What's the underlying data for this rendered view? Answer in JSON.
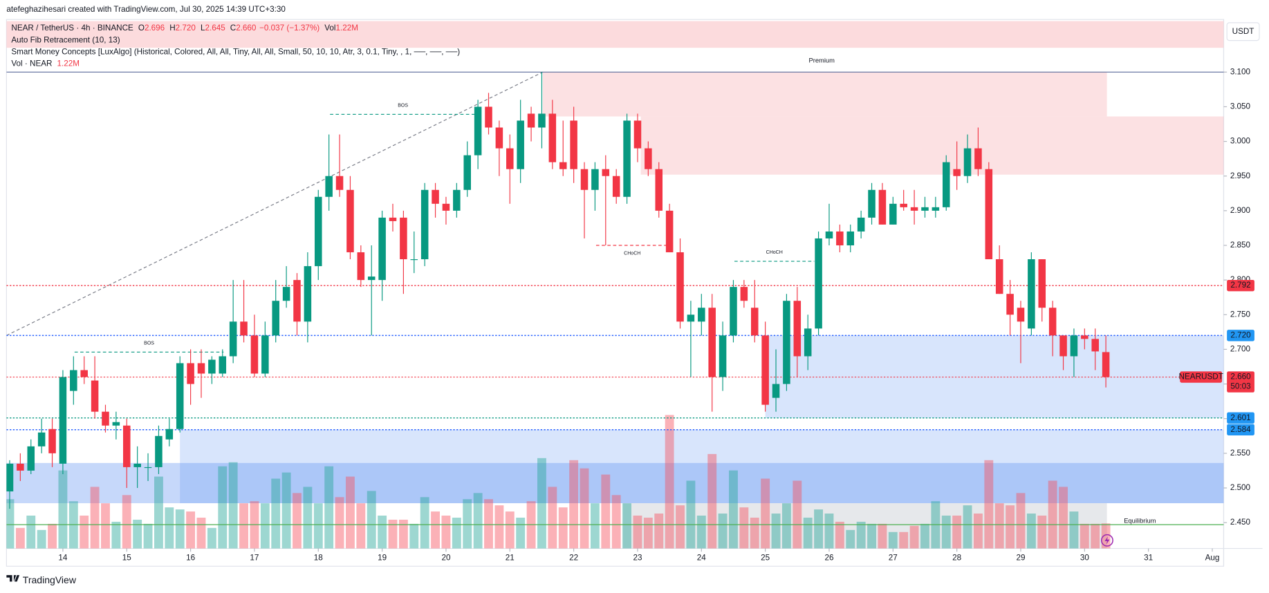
{
  "header": {
    "author_line": "atefeghazihesari created with TradingView.com, Jul 30, 2025 14:39 UTC+3:30",
    "symbol": "NEAR / TetherUS · 4h · BINANCE",
    "ohlc": [
      {
        "key": "O",
        "value": "2.696"
      },
      {
        "key": "H",
        "value": "2.720"
      },
      {
        "key": "L",
        "value": "2.645"
      },
      {
        "key": "C",
        "value": "2.660"
      }
    ],
    "change": "−0.037 (−1.37%)",
    "vol_key": "Vol",
    "vol": "1.22M",
    "indicators": [
      "Auto Fib Retracement (10, 13)",
      "Smart Money Concepts [LuxAlgo] (Historical, Colored, All, All, Tiny, All, All, Small, 50, 10, 10, Atr, 3, 0.1, Tiny, , 1, ──, ──, ──)"
    ],
    "vol_line": "Vol · NEAR",
    "vol_line_value": "1.22M",
    "currency": "USDT",
    "brand": "TradingView"
  },
  "chart_data": {
    "type": "candlestick",
    "up_color": "#089981",
    "down_color": "#f23645",
    "volume_up_color": "#26a69a",
    "volume_down_color": "#f7525f",
    "open": [
      2.495,
      2.535,
      2.525,
      2.56,
      2.585,
      2.535,
      2.64,
      2.67,
      2.655,
      2.61,
      2.59,
      2.59,
      2.53,
      2.53,
      2.53,
      2.57,
      2.585,
      2.68,
      2.68,
      2.665,
      2.665,
      2.69,
      2.74,
      2.72,
      2.665,
      2.72,
      2.77,
      2.8,
      2.74,
      2.82,
      2.92,
      2.95,
      2.93,
      2.84,
      2.8,
      2.8,
      2.89,
      2.89,
      2.83,
      2.83,
      2.93,
      2.91,
      2.9,
      2.93,
      2.98,
      3.05,
      3.02,
      2.99,
      2.96,
      3.04,
      3.02,
      3.04,
      2.97,
      3.03,
      2.96,
      2.93,
      2.96,
      2.95,
      2.92,
      3.03,
      2.99,
      2.96,
      2.9,
      2.84,
      2.74,
      2.74,
      2.76,
      2.66,
      2.72,
      2.79,
      2.76,
      2.72,
      2.63,
      2.65,
      2.77,
      2.69,
      2.73,
      2.86,
      2.87,
      2.85,
      2.87,
      2.89,
      2.93,
      2.88,
      2.91,
      2.905,
      2.9,
      2.9,
      2.905,
      2.96,
      2.95,
      2.99,
      2.96,
      2.83,
      2.78,
      2.76,
      2.73,
      2.83,
      2.76,
      2.72,
      2.69,
      2.72,
      2.715,
      2.696
    ],
    "high": [
      2.54,
      2.55,
      2.57,
      2.6,
      2.6,
      2.67,
      2.69,
      2.69,
      2.69,
      2.62,
      2.61,
      2.6,
      2.56,
      2.55,
      2.59,
      2.6,
      2.69,
      2.7,
      2.7,
      2.69,
      2.7,
      2.8,
      2.8,
      2.75,
      2.74,
      2.8,
      2.82,
      2.81,
      2.84,
      2.93,
      3.01,
      3.01,
      2.95,
      2.85,
      2.85,
      2.9,
      2.91,
      2.9,
      2.87,
      2.94,
      2.94,
      2.92,
      2.94,
      3,
      3.06,
      3.07,
      3.03,
      3.01,
      3.06,
      3.05,
      3.1,
      3.06,
      3.03,
      3.05,
      2.97,
      2.97,
      2.98,
      2.96,
      3.04,
      3.04,
      3,
      2.97,
      2.91,
      2.86,
      2.77,
      2.78,
      2.78,
      2.74,
      2.8,
      2.8,
      2.8,
      2.74,
      2.7,
      2.78,
      2.79,
      2.75,
      2.87,
      2.91,
      2.88,
      2.88,
      2.9,
      2.94,
      2.94,
      2.92,
      2.93,
      2.93,
      2.92,
      2.92,
      2.98,
      3,
      3.01,
      3.02,
      2.97,
      2.85,
      2.8,
      2.77,
      2.84,
      2.83,
      2.77,
      2.72,
      2.73,
      2.73,
      2.73,
      2.72
    ],
    "low": [
      2.47,
      2.51,
      2.52,
      2.55,
      2.53,
      2.52,
      2.62,
      2.65,
      2.6,
      2.58,
      2.57,
      2.5,
      2.5,
      2.51,
      2.52,
      2.56,
      2.58,
      2.62,
      2.63,
      2.65,
      2.66,
      2.68,
      2.71,
      2.66,
      2.66,
      2.71,
      2.76,
      2.72,
      2.71,
      2.8,
      2.9,
      2.92,
      2.83,
      2.79,
      2.72,
      2.77,
      2.87,
      2.78,
      2.81,
      2.82,
      2.89,
      2.88,
      2.89,
      2.92,
      2.96,
      3.01,
      2.95,
      2.91,
      2.94,
      3,
      2.99,
      2.96,
      2.95,
      2.94,
      2.86,
      2.9,
      2.85,
      2.91,
      2.91,
      2.97,
      2.95,
      2.89,
      2.84,
      2.73,
      2.66,
      2.72,
      2.61,
      2.64,
      2.71,
      2.76,
      2.71,
      2.61,
      2.61,
      2.64,
      2.66,
      2.67,
      2.72,
      2.85,
      2.84,
      2.84,
      2.86,
      2.88,
      2.88,
      2.88,
      2.9,
      2.88,
      2.89,
      2.89,
      2.9,
      2.93,
      2.94,
      2.95,
      2.83,
      2.78,
      2.72,
      2.68,
      2.72,
      2.74,
      2.69,
      2.67,
      2.66,
      2.7,
      2.67,
      2.645
    ],
    "close": [
      2.535,
      2.525,
      2.56,
      2.58,
      2.55,
      2.66,
      2.67,
      2.66,
      2.61,
      2.59,
      2.595,
      2.53,
      2.535,
      2.53,
      2.575,
      2.585,
      2.68,
      2.65,
      2.665,
      2.685,
      2.69,
      2.74,
      2.72,
      2.665,
      2.72,
      2.77,
      2.79,
      2.74,
      2.82,
      2.92,
      2.95,
      2.93,
      2.84,
      2.8,
      2.805,
      2.89,
      2.885,
      2.83,
      2.83,
      2.93,
      2.91,
      2.9,
      2.93,
      2.98,
      3.05,
      3.02,
      2.99,
      2.96,
      3.03,
      3.02,
      3.04,
      2.97,
      2.96,
      2.96,
      2.93,
      2.96,
      2.95,
      2.92,
      3.03,
      2.99,
      2.96,
      2.9,
      2.84,
      2.74,
      2.75,
      2.76,
      2.66,
      2.72,
      2.79,
      2.77,
      2.72,
      2.62,
      2.65,
      2.77,
      2.69,
      2.73,
      2.86,
      2.87,
      2.85,
      2.87,
      2.89,
      2.93,
      2.88,
      2.91,
      2.905,
      2.9,
      2.905,
      2.905,
      2.97,
      2.95,
      2.99,
      2.96,
      2.83,
      2.78,
      2.75,
      2.74,
      2.83,
      2.76,
      2.72,
      2.69,
      2.72,
      2.715,
      2.697,
      2.66
    ],
    "volume": [
      2.4,
      1.0,
      1.6,
      0.9,
      1.2,
      3.8,
      2.3,
      1.6,
      3.0,
      2.2,
      1.3,
      2.6,
      1.4,
      1.2,
      3.5,
      2.0,
      1.9,
      1.8,
      1.5,
      1.0,
      4.0,
      4.2,
      2.2,
      2.3,
      2.2,
      3.4,
      3.7,
      2.7,
      3.0,
      2.2,
      4.0,
      2.5,
      3.5,
      2.2,
      2.8,
      1.6,
      1.4,
      1.4,
      1.2,
      2.5,
      1.8,
      1.6,
      1.5,
      2.4,
      2.7,
      2.4,
      2.1,
      1.8,
      1.5,
      2.3,
      4.4,
      3.0,
      2.0,
      4.3,
      3.9,
      2.2,
      3.6,
      2.6,
      2.2,
      1.6,
      1.5,
      1.7,
      6.5,
      2.1,
      3.3,
      1.6,
      4.6,
      1.7,
      3.8,
      2.0,
      1.5,
      3.4,
      1.7,
      2.2,
      3.3,
      1.5,
      1.9,
      1.7,
      1.3,
      0.9,
      1.3,
      1.2,
      1.2,
      0.8,
      0.8,
      1.1,
      1.2,
      2.3,
      1.6,
      1.6,
      2.1,
      1.7,
      4.3,
      2.2,
      2.1,
      2.7,
      1.7,
      1.6,
      3.3,
      3.0,
      1.8,
      1.2,
      1.2,
      1.22
    ],
    "xlim": [
      -0.3,
      114.07
    ],
    "xticks": [
      {
        "value": 5,
        "label": "14"
      },
      {
        "value": 11,
        "label": "15"
      },
      {
        "value": 17,
        "label": "16"
      },
      {
        "value": 23,
        "label": "17"
      },
      {
        "value": 29,
        "label": "18"
      },
      {
        "value": 35,
        "label": "19"
      },
      {
        "value": 41,
        "label": "20"
      },
      {
        "value": 47,
        "label": "21"
      },
      {
        "value": 53,
        "label": "22"
      },
      {
        "value": 59,
        "label": "23"
      },
      {
        "value": 65,
        "label": "24"
      },
      {
        "value": 71,
        "label": "25"
      },
      {
        "value": 77,
        "label": "26"
      },
      {
        "value": 83,
        "label": "27"
      },
      {
        "value": 89,
        "label": "28"
      },
      {
        "value": 95,
        "label": "29"
      },
      {
        "value": 101,
        "label": "30"
      },
      {
        "value": 107,
        "label": "31"
      },
      {
        "value": 113,
        "label": "Aug"
      }
    ],
    "ylim": [
      2.4127,
      3.1759
    ],
    "yticks": [
      {
        "value": 2.45,
        "label": "2.450"
      },
      {
        "value": 2.5,
        "label": "2.500"
      },
      {
        "value": 2.55,
        "label": "2.550"
      },
      {
        "value": 2.6,
        "label": "2.600"
      },
      {
        "value": 2.65,
        "label": "2.650"
      },
      {
        "value": 2.7,
        "label": "2.700"
      },
      {
        "value": 2.75,
        "label": "2.750"
      },
      {
        "value": 2.8,
        "label": "2.800"
      },
      {
        "value": 2.85,
        "label": "2.850"
      },
      {
        "value": 2.9,
        "label": "2.900"
      },
      {
        "value": 2.95,
        "label": "2.950"
      },
      {
        "value": 3.0,
        "label": "3.000"
      },
      {
        "value": 3.05,
        "label": "3.050"
      },
      {
        "value": 3.1,
        "label": "3.100"
      }
    ],
    "zones": [
      {
        "x0": 50.1,
        "x1": 103.1,
        "y0": 3.036,
        "y1": 3.1,
        "color": "#f7a9b0"
      },
      {
        "x0": 59.3,
        "x1": 114.07,
        "y0": 2.952,
        "y1": 3.036,
        "color": "#f7a9b0"
      },
      {
        "x0": 71.0,
        "x1": 114.07,
        "y0": 2.601,
        "y1": 2.72,
        "color": "#90b4f5"
      },
      {
        "x0": 16.0,
        "x1": 114.07,
        "y0": 2.478,
        "y1": 2.584,
        "color": "#90b4f5"
      },
      {
        "x0": -0.3,
        "x1": 114.07,
        "y0": 2.478,
        "y1": 2.536,
        "color": "#5b8ef0"
      },
      {
        "x0": 57.6,
        "x1": 103.1,
        "y0": 2.4127,
        "y1": 2.478,
        "color": "#b8bcc6"
      }
    ],
    "lines": [
      {
        "x0": -0.3,
        "x1": 50.1,
        "y0": 2.72,
        "y1": 3.1,
        "color": "#787b86",
        "style": "dashed"
      },
      {
        "x0": -0.3,
        "x1": 114.07,
        "y0": 3.1,
        "y1": 3.1,
        "color": "#5d6c9b",
        "style": "solid"
      },
      {
        "x0": -0.3,
        "x1": 114.07,
        "y0": 2.447,
        "y1": 2.447,
        "color": "#4caf50",
        "style": "solid"
      },
      {
        "x0": -0.3,
        "x1": 114.07,
        "y0": 2.66,
        "y1": 2.66,
        "color": "#f23645",
        "style": "dotted"
      }
    ],
    "structures": [
      {
        "label": "BOS",
        "x0": 6.1,
        "x1": 20.1,
        "y": 2.696,
        "color": "#089981"
      },
      {
        "label": "BOS",
        "x0": 30.1,
        "x1": 43.8,
        "y": 3.039,
        "color": "#089981"
      },
      {
        "label": "CHoCH",
        "x0": 55.1,
        "x1": 61.9,
        "y": 2.85,
        "color": "#f23645"
      },
      {
        "label": "CHoCH",
        "x0": 68.1,
        "x1": 75.6,
        "y": 2.827,
        "color": "#089981"
      }
    ],
    "annotations": [
      {
        "text": "Premium",
        "x": 76.3,
        "y": 3.116,
        "color": "#f23645"
      },
      {
        "text": "Equilibrium",
        "x": 106.2,
        "y": 2.452,
        "color": "#b2b5be"
      }
    ],
    "levels": [
      {
        "value": 2.792,
        "label": "2.792",
        "color": "#f23645"
      },
      {
        "value": 2.72,
        "label": "2.720",
        "color": "#2962ff"
      },
      {
        "value": 2.601,
        "label": "2.601",
        "color": "#089981"
      },
      {
        "value": 2.584,
        "label": "2.584",
        "color": "#2962ff"
      }
    ],
    "last_price": {
      "value": 2.66,
      "label": "2.660",
      "name": "NEARUSDT",
      "countdown": "50:03",
      "color": "#f23645"
    }
  }
}
